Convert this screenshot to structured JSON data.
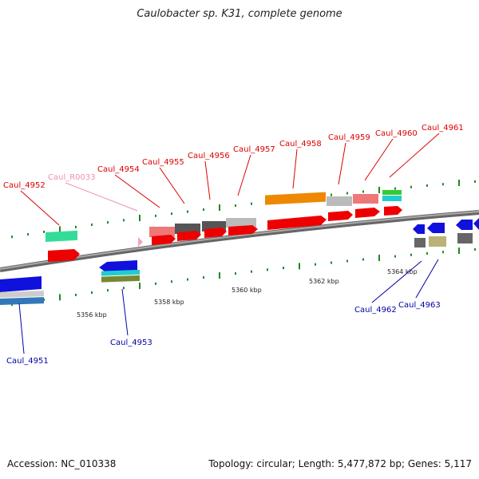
{
  "header": {
    "title": "Caulobacter sp. K31, complete genome"
  },
  "footer": {
    "accession": "Accession: NC_010338",
    "summary": "Topology: circular; Length: 5,477,872 bp; Genes: 5,117"
  },
  "colors": {
    "plus_label": "#dd0000",
    "minus_label": "#0000aa",
    "rna_label": "#f090b0",
    "backbone": "#888888",
    "tick": "#228822"
  },
  "scale_labels": [
    "5356 kbp",
    "5358 kbp",
    "5360 kbp",
    "5362 kbp",
    "5364 kbp"
  ],
  "genes": [
    {
      "label": "Caul_4951",
      "strand": "minus"
    },
    {
      "label": "Caul_4952",
      "strand": "plus"
    },
    {
      "label": "Caul_R0033",
      "strand": "rna"
    },
    {
      "label": "Caul_4953",
      "strand": "minus"
    },
    {
      "label": "Caul_4954",
      "strand": "plus"
    },
    {
      "label": "Caul_4955",
      "strand": "plus"
    },
    {
      "label": "Caul_4956",
      "strand": "plus"
    },
    {
      "label": "Caul_4957",
      "strand": "plus"
    },
    {
      "label": "Caul_4958",
      "strand": "plus"
    },
    {
      "label": "Caul_4959",
      "strand": "plus"
    },
    {
      "label": "Caul_4960",
      "strand": "plus"
    },
    {
      "label": "Caul_4961",
      "strand": "plus"
    },
    {
      "label": "Caul_4962",
      "strand": "minus"
    },
    {
      "label": "Caul_4963",
      "strand": "minus"
    }
  ]
}
